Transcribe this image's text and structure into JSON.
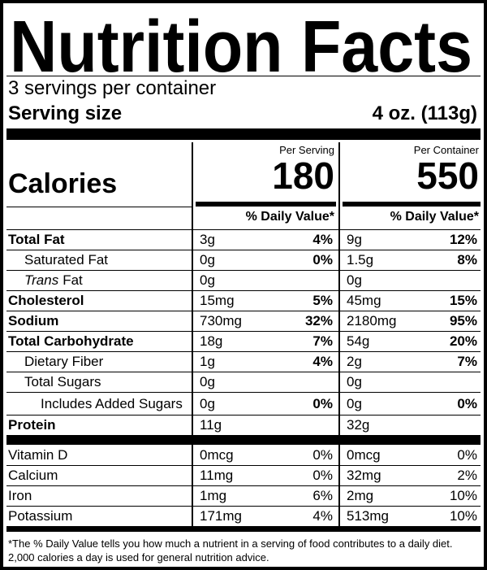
{
  "title": "Nutrition Facts",
  "servings_per_container": "3 servings per container",
  "serving_size": {
    "label": "Serving size",
    "value": "4 oz. (113g)"
  },
  "columns": [
    "Per Serving",
    "Per Container"
  ],
  "calories": {
    "label": "Calories",
    "values": [
      "180",
      "550"
    ]
  },
  "daily_value_header": "% Daily Value*",
  "nutrients": [
    {
      "name": "Total Fat",
      "values": [
        {
          "amount": "3g",
          "dv": "4%"
        },
        {
          "amount": "9g",
          "dv": "12%"
        }
      ]
    },
    {
      "name": "Saturated Fat",
      "values": [
        {
          "amount": "0g",
          "dv": "0%"
        },
        {
          "amount": "1.5g",
          "dv": "8%"
        }
      ]
    },
    {
      "name_italic": "Trans",
      "name": "Fat",
      "values": [
        {
          "amount": "0g"
        },
        {
          "amount": "0g"
        }
      ]
    },
    {
      "name": "Cholesterol",
      "values": [
        {
          "amount": "15mg",
          "dv": "5%"
        },
        {
          "amount": "45mg",
          "dv": "15%"
        }
      ]
    },
    {
      "name": "Sodium",
      "values": [
        {
          "amount": "730mg",
          "dv": "32%"
        },
        {
          "amount": "2180mg",
          "dv": "95%"
        }
      ]
    },
    {
      "name": "Total Carbohydrate",
      "values": [
        {
          "amount": "18g",
          "dv": "7%"
        },
        {
          "amount": "54g",
          "dv": "20%"
        }
      ]
    },
    {
      "name": "Dietary Fiber",
      "values": [
        {
          "amount": "1g",
          "dv": "4%"
        },
        {
          "amount": "2g",
          "dv": "7%"
        }
      ]
    },
    {
      "name": "Total Sugars",
      "values": [
        {
          "amount": "0g"
        },
        {
          "amount": "0g"
        }
      ]
    },
    {
      "name": "Includes Added Sugars",
      "values": [
        {
          "amount": "0g",
          "dv": "0%"
        },
        {
          "amount": "0g",
          "dv": "0%"
        }
      ]
    },
    {
      "name": "Protein",
      "values": [
        {
          "amount": "11g"
        },
        {
          "amount": "32g"
        }
      ]
    }
  ],
  "vitamins_minerals": [
    {
      "name": "Vitamin D",
      "values": [
        {
          "amount": "0mcg",
          "dv": "0%"
        },
        {
          "amount": "0mcg",
          "dv": "0%"
        }
      ]
    },
    {
      "name": "Calcium",
      "values": [
        {
          "amount": "11mg",
          "dv": "0%"
        },
        {
          "amount": "32mg",
          "dv": "2%"
        }
      ]
    },
    {
      "name": "Iron",
      "values": [
        {
          "amount": "1mg",
          "dv": "6%"
        },
        {
          "amount": "2mg",
          "dv": "10%"
        }
      ]
    },
    {
      "name": "Potassium",
      "values": [
        {
          "amount": "171mg",
          "dv": "4%"
        },
        {
          "amount": "513mg",
          "dv": "10%"
        }
      ]
    }
  ],
  "footnote": [
    "*The % Daily Value tells you how much a nutrient in a serving of food contributes to a daily diet.",
    "2,000 calories a day is used for general nutrition advice."
  ]
}
